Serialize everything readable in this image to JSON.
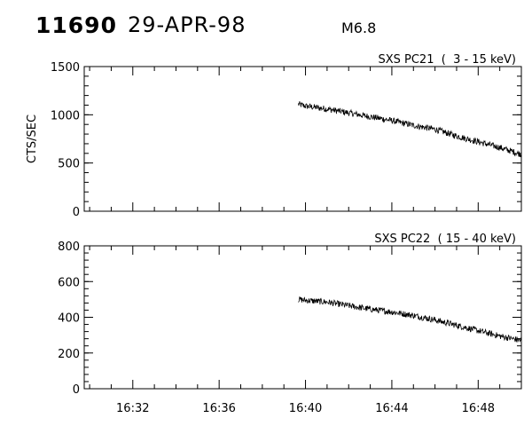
{
  "header": {
    "event_id": "11690",
    "date": "29-APR-98",
    "flare_class": "M6.8"
  },
  "chart_data": [
    {
      "type": "line",
      "title": "SXS PC21  (  3 - 15 keV)",
      "xlabel": "",
      "ylabel": "CTS/SEC",
      "x_ticks": [
        "16:32",
        "16:36",
        "16:40",
        "16:44",
        "16:48"
      ],
      "xlim": [
        "16:29:45",
        "16:50:00"
      ],
      "ylim": [
        0,
        1500
      ],
      "y_ticks": [
        0,
        500,
        1000,
        1500
      ],
      "grid": false,
      "series": [
        {
          "x": [
            "16:39:40",
            "16:40:00",
            "16:41:00",
            "16:42:00",
            "16:43:00",
            "16:44:00",
            "16:45:00",
            "16:46:00",
            "16:47:00",
            "16:48:00",
            "16:49:00",
            "16:50:00"
          ],
          "values": [
            1110,
            1090,
            1060,
            1020,
            980,
            940,
            890,
            850,
            780,
            720,
            660,
            590
          ]
        }
      ]
    },
    {
      "type": "line",
      "title": "SXS PC22  ( 15 - 40 keV)",
      "xlabel": "",
      "ylabel": "",
      "x_ticks": [
        "16:32",
        "16:36",
        "16:40",
        "16:44",
        "16:48"
      ],
      "xlim": [
        "16:29:45",
        "16:50:00"
      ],
      "ylim": [
        0,
        800
      ],
      "y_ticks": [
        0,
        200,
        400,
        600,
        800
      ],
      "grid": false,
      "series": [
        {
          "x": [
            "16:39:40",
            "16:40:00",
            "16:41:00",
            "16:42:00",
            "16:43:00",
            "16:44:00",
            "16:45:00",
            "16:46:00",
            "16:47:00",
            "16:48:00",
            "16:49:00",
            "16:50:00"
          ],
          "values": [
            500,
            495,
            485,
            465,
            445,
            430,
            410,
            385,
            355,
            325,
            295,
            270
          ]
        }
      ]
    }
  ]
}
